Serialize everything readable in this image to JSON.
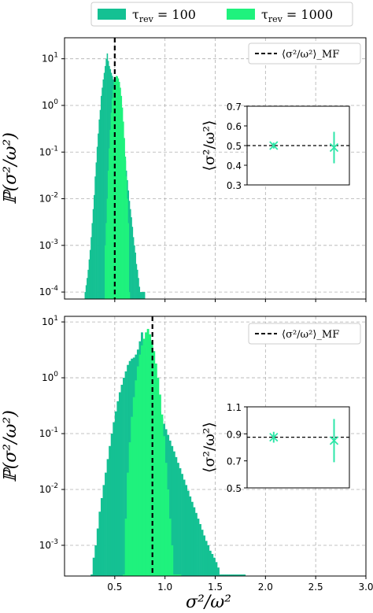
{
  "legend": {
    "entries": [
      {
        "symbol": "τ",
        "sub": "rev",
        "rest": " = 100",
        "color": "#14c193"
      },
      {
        "symbol": "τ",
        "sub": "rev",
        "rest": " = 1000",
        "color": "#1ff27d"
      }
    ]
  },
  "colors": {
    "tau100": "#14c193",
    "tau1000": "#1ff27d",
    "accent": "#2ee6a8",
    "meanfield": "#000000",
    "grid": "#b0b0b0"
  },
  "chart_data": [
    {
      "type": "bar",
      "panel": "top",
      "x_label": "σ²/ω²",
      "y_label": "ℙ(σ²/ω²)",
      "xlim": [
        0.0,
        3.0
      ],
      "ylim_log10": [
        -4.15,
        1.45
      ],
      "y_scale": "log",
      "y_ticks": [
        {
          "base": "10",
          "exp": "-4",
          "v": -4
        },
        {
          "base": "10",
          "exp": "-3",
          "v": -3
        },
        {
          "base": "10",
          "exp": "-2",
          "v": -2
        },
        {
          "base": "10",
          "exp": "-1",
          "v": -1
        },
        {
          "base": "10",
          "exp": "0",
          "v": 0
        },
        {
          "base": "10",
          "exp": "1",
          "v": 1
        }
      ],
      "x_ticks": [],
      "grid": true,
      "mean_field_line": {
        "x": 0.5,
        "legend": "⟨σ²/ω²⟩_MF"
      },
      "series": [
        {
          "name": "τ_rev = 100",
          "bin_width": 0.01,
          "x_start": 0.2,
          "values": [
            0.0001,
            0.00014,
            0.0002,
            0.0003,
            0.0005,
            0.0008,
            0.0015,
            0.003,
            0.006,
            0.012,
            0.03,
            0.06,
            0.13,
            0.25,
            0.5,
            0.8,
            1.6,
            2.4,
            3.6,
            5.0,
            7.0,
            10.0,
            13.0,
            9.0,
            7.0,
            6.0,
            5.0,
            4.3,
            3.6,
            3.0,
            2.4,
            1.9,
            1.5,
            1.1,
            0.8,
            0.55,
            0.38,
            0.25,
            0.16,
            0.1,
            0.065,
            0.04,
            0.025,
            0.015,
            0.009,
            0.006,
            0.004,
            0.0025,
            0.0015,
            0.001,
            0.0007,
            0.0004,
            0.0003,
            0.0002,
            0.00013,
            0.0001,
            0.0001,
            0.0001,
            0.0001,
            0.0001
          ]
        },
        {
          "name": "τ_rev = 1000",
          "bin_width": 0.01,
          "x_start": 0.4,
          "values": [
            0.001,
            0.003,
            0.01,
            0.04,
            0.12,
            0.3,
            0.7,
            1.4,
            2.3,
            3.2,
            4.0,
            4.3,
            4.2,
            3.8,
            3.2,
            2.4,
            1.6,
            0.9,
            0.45,
            0.2,
            0.08,
            0.03,
            0.01,
            0.003,
            0.0001
          ]
        }
      ],
      "inset": {
        "y_label": "⟨σ²/ω²⟩",
        "ylim": [
          0.3,
          0.7
        ],
        "y_ticks": [
          "0.3",
          "0.4",
          "0.5",
          "0.6",
          "0.7"
        ],
        "mean_field": 0.5,
        "points": [
          {
            "series": "τ_rev = 1000",
            "y": 0.5,
            "err": 0.015
          },
          {
            "series": "τ_rev = 100",
            "y": 0.49,
            "err": 0.08
          }
        ]
      }
    },
    {
      "type": "bar",
      "panel": "bottom",
      "x_label": "σ²/ω²",
      "y_label": "ℙ(σ²/ω²)",
      "xlim": [
        0.0,
        3.0
      ],
      "ylim_log10": [
        -3.55,
        1.1
      ],
      "y_scale": "log",
      "y_ticks": [
        {
          "base": "10",
          "exp": "-3",
          "v": -3
        },
        {
          "base": "10",
          "exp": "-2",
          "v": -2
        },
        {
          "base": "10",
          "exp": "-1",
          "v": -1
        },
        {
          "base": "10",
          "exp": "0",
          "v": 0
        },
        {
          "base": "10",
          "exp": "1",
          "v": 1
        }
      ],
      "x_ticks": [
        "0.5",
        "1.0",
        "1.5",
        "2.0",
        "2.5",
        "3.0"
      ],
      "grid": true,
      "mean_field_line": {
        "x": 0.875,
        "legend": "⟨σ²/ω²⟩_MF"
      },
      "series": [
        {
          "name": "τ_rev = 100",
          "bin_width": 0.02,
          "x_start": 0.26,
          "values": [
            0.0003,
            0.0006,
            0.001,
            0.002,
            0.004,
            0.007,
            0.012,
            0.02,
            0.035,
            0.06,
            0.1,
            0.16,
            0.25,
            0.38,
            0.55,
            0.75,
            1.0,
            1.3,
            1.7,
            2.0,
            2.2,
            2.3,
            2.6,
            3.2,
            4.5,
            6.5,
            3.5,
            2.4,
            1.8,
            1.3,
            0.9,
            0.6,
            0.45,
            0.33,
            0.25,
            0.19,
            0.15,
            0.12,
            0.095,
            0.075,
            0.06,
            0.048,
            0.038,
            0.03,
            0.024,
            0.019,
            0.015,
            0.012,
            0.0095,
            0.0075,
            0.006,
            0.0048,
            0.0038,
            0.003,
            0.0024,
            0.0019,
            0.0015,
            0.0012,
            0.001,
            0.0008,
            0.0007,
            0.0006,
            0.0005,
            0.0004,
            0.0003,
            0.0003,
            0.0003,
            0.0003,
            0.0003,
            0.0003,
            0.0003,
            0.0003,
            0.0003,
            0.0003,
            0.0003,
            0.0003,
            0.0003
          ]
        },
        {
          "name": "τ_rev = 1000",
          "bin_width": 0.02,
          "x_start": 0.58,
          "values": [
            0.0003,
            0.003,
            0.02,
            0.07,
            0.2,
            0.45,
            0.9,
            1.6,
            2.6,
            3.8,
            5.0,
            6.5,
            7.5,
            6.0,
            4.5,
            3.0,
            1.8,
            1.0,
            0.5,
            0.22,
            0.09,
            0.03,
            0.01,
            0.003,
            0.001,
            0.0003,
            0.0003,
            0.0003,
            0.0003
          ]
        }
      ],
      "inset": {
        "y_label": "⟨σ²/ω²⟩",
        "ylim": [
          0.5,
          1.1
        ],
        "y_ticks": [
          "0.5",
          "0.7",
          "0.9",
          "1.1"
        ],
        "mean_field": 0.875,
        "points": [
          {
            "series": "τ_rev = 1000",
            "y": 0.875,
            "err": 0.04
          },
          {
            "series": "τ_rev = 100",
            "y": 0.85,
            "err": 0.16
          }
        ]
      }
    }
  ]
}
